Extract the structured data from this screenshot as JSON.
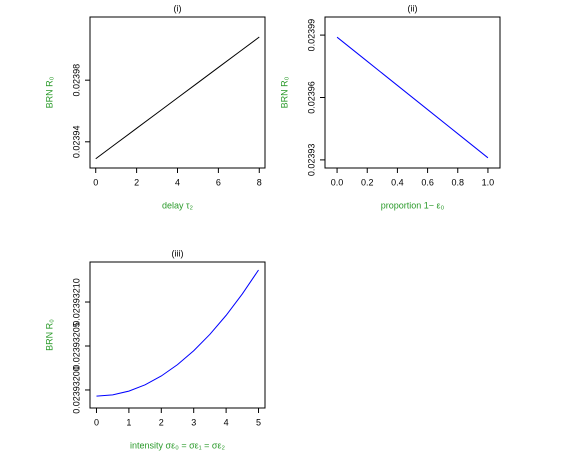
{
  "chart_data": [
    {
      "type": "line",
      "title": "(i)",
      "xlabel": "delay τ₂",
      "ylabel": "BRN R₀",
      "x": [
        0,
        1,
        2,
        3,
        4,
        5,
        6,
        7,
        8
      ],
      "values": [
        0.023929,
        0.02393888,
        0.02394875,
        0.02395863,
        0.0239685,
        0.02397838,
        0.02398825,
        0.02399813,
        0.024008
      ],
      "color": "#000000",
      "xlim": [
        -0.28,
        8.28
      ],
      "xticks": [
        0,
        2,
        4,
        6,
        8
      ],
      "ylim": [
        0.023923,
        0.024021
      ],
      "yticks": [
        0.02394,
        0.02398
      ]
    },
    {
      "type": "line",
      "title": "(ii)",
      "xlabel": "proportion 1− ε₀",
      "ylabel": "BRN R₀",
      "x": [
        0,
        0.2,
        0.4,
        0.6,
        0.8,
        1
      ],
      "values": [
        0.023989,
        0.0239774,
        0.0239658,
        0.0239542,
        0.0239426,
        0.023931
      ],
      "color": "#0000ff",
      "xlim": [
        -0.08,
        1.08
      ],
      "xticks": [
        {
          "value": 0,
          "label": "0.0"
        },
        0.2,
        0.4,
        0.6,
        0.8,
        {
          "value": 1,
          "label": "1.0"
        }
      ],
      "ylim": [
        0.0239261,
        0.0239987
      ],
      "yticks": [
        0.02393,
        0.02396,
        0.02399
      ]
    },
    {
      "type": "line",
      "title": "(iii)",
      "xlabel": "intensity σε₀ = σε₁ = σε₂",
      "ylabel": "BRN R₀",
      "x": [
        0,
        0.5,
        1,
        1.5,
        2,
        2.5,
        3,
        3.5,
        4,
        4.5,
        5
      ],
      "values": [
        0.023931993,
        0.0239319944,
        0.0239319987,
        0.0239320059,
        0.0239320159,
        0.0239320288,
        0.0239320446,
        0.0239320633,
        0.0239320848,
        0.0239321092,
        0.0239321364
      ],
      "color": "#0000ff",
      "xlim": [
        -0.2,
        5.2
      ],
      "xticks": [
        0,
        1,
        2,
        3,
        4,
        5
      ],
      "ylim": [
        0.0239319795,
        0.0239321455
      ],
      "yticks": [
        {
          "value": 0.023932,
          "label": "0.02393200"
        },
        {
          "value": 0.02393205,
          "label": "0.02393205"
        },
        {
          "value": 0.0239321,
          "label": "0.02393210"
        }
      ]
    }
  ]
}
